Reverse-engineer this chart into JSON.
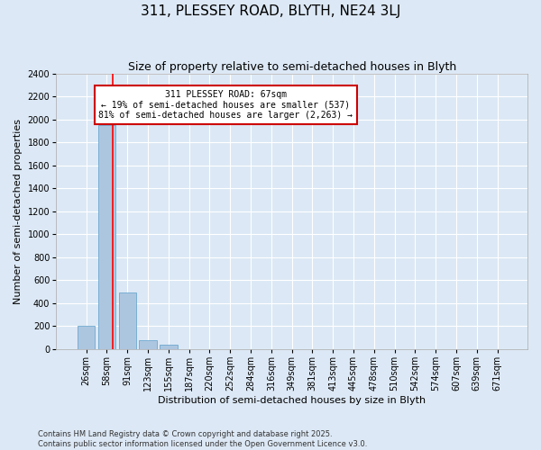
{
  "title": "311, PLESSEY ROAD, BLYTH, NE24 3LJ",
  "subtitle": "Size of property relative to semi-detached houses in Blyth",
  "xlabel": "Distribution of semi-detached houses by size in Blyth",
  "ylabel": "Number of semi-detached properties",
  "categories": [
    "26sqm",
    "58sqm",
    "91sqm",
    "123sqm",
    "155sqm",
    "187sqm",
    "220sqm",
    "252sqm",
    "284sqm",
    "316sqm",
    "349sqm",
    "381sqm",
    "413sqm",
    "445sqm",
    "478sqm",
    "510sqm",
    "542sqm",
    "574sqm",
    "607sqm",
    "639sqm",
    "671sqm"
  ],
  "values": [
    200,
    1950,
    490,
    75,
    40,
    0,
    0,
    0,
    0,
    0,
    0,
    0,
    0,
    0,
    0,
    0,
    0,
    0,
    0,
    0,
    0
  ],
  "bar_color": "#adc6e0",
  "bar_edge_color": "#5a9ec9",
  "ylim": [
    0,
    2400
  ],
  "yticks": [
    0,
    200,
    400,
    600,
    800,
    1000,
    1200,
    1400,
    1600,
    1800,
    2000,
    2200,
    2400
  ],
  "red_line_x": 1.28,
  "annotation_text": "311 PLESSEY ROAD: 67sqm\n← 19% of semi-detached houses are smaller (537)\n81% of semi-detached houses are larger (2,263) →",
  "annotation_box_color": "#ffffff",
  "annotation_box_edge": "#cc0000",
  "footer_text": "Contains HM Land Registry data © Crown copyright and database right 2025.\nContains public sector information licensed under the Open Government Licence v3.0.",
  "bg_color": "#dce8f5",
  "plot_bg_color": "#dce8f5",
  "grid_color": "#ffffff",
  "title_fontsize": 11,
  "subtitle_fontsize": 9,
  "label_fontsize": 8,
  "tick_fontsize": 7,
  "footer_fontsize": 6
}
